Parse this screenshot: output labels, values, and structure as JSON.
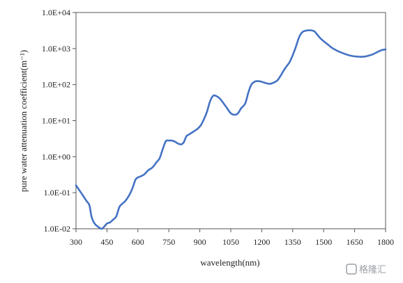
{
  "chart_data": {
    "type": "line",
    "title": "",
    "xlabel": "wavelength(nm)",
    "ylabel": "pure water attenuation coefficient(m⁻¹)",
    "xlim": [
      300,
      1800
    ],
    "ylim": [
      0.01,
      10000
    ],
    "yscale": "log",
    "x_ticks": [
      300,
      450,
      600,
      750,
      900,
      1050,
      1200,
      1350,
      1500,
      1650,
      1800
    ],
    "x_tick_labels": [
      "300",
      "450",
      "600",
      "750",
      "900",
      "1050",
      "1200",
      "1350",
      "1500",
      "1650",
      "1800"
    ],
    "y_ticks": [
      0.01,
      0.1,
      1,
      10,
      100,
      1000,
      10000
    ],
    "y_tick_labels": [
      "1.0E-02",
      "1.0E-01",
      "1.0E+00",
      "1.0E+01",
      "1.0E+02",
      "1.0E+03",
      "1.0E+04"
    ],
    "grid": false,
    "line_color": "#4472C4",
    "series": [
      {
        "x": [
          300,
          330,
          350,
          365,
          375,
          390,
          410,
          425,
          440,
          450,
          465,
          480,
          495,
          510,
          525,
          540,
          560,
          575,
          590,
          610,
          630,
          650,
          670,
          690,
          705,
          720,
          735,
          750,
          765,
          780,
          795,
          810,
          822,
          835,
          850,
          870,
          890,
          905,
          920,
          935,
          950,
          965,
          980,
          995,
          1010,
          1030,
          1050,
          1070,
          1085,
          1100,
          1120,
          1135,
          1150,
          1165,
          1180,
          1200,
          1220,
          1240,
          1260,
          1275,
          1290,
          1305,
          1320,
          1335,
          1350,
          1365,
          1380,
          1395,
          1410,
          1425,
          1440,
          1455,
          1470,
          1485,
          1500,
          1520,
          1540,
          1560,
          1580,
          1600,
          1620,
          1640,
          1660,
          1680,
          1700,
          1720,
          1740,
          1760,
          1780,
          1800
        ],
        "y": [
          0.16,
          0.09,
          0.06,
          0.045,
          0.022,
          0.014,
          0.011,
          0.01,
          0.012,
          0.014,
          0.015,
          0.018,
          0.022,
          0.04,
          0.05,
          0.06,
          0.09,
          0.14,
          0.24,
          0.28,
          0.32,
          0.42,
          0.5,
          0.7,
          0.9,
          1.6,
          2.7,
          2.8,
          2.8,
          2.6,
          2.3,
          2.2,
          2.5,
          3.7,
          4.2,
          5.0,
          6.0,
          7.5,
          11,
          18,
          35,
          49,
          48,
          42,
          33,
          23,
          16,
          14.5,
          16,
          22,
          30,
          60,
          100,
          120,
          125,
          120,
          110,
          105,
          115,
          130,
          170,
          240,
          320,
          420,
          650,
          1100,
          2000,
          2800,
          3100,
          3200,
          3200,
          3000,
          2400,
          1900,
          1600,
          1300,
          1050,
          900,
          800,
          720,
          660,
          620,
          600,
          590,
          600,
          640,
          700,
          800,
          900,
          950
        ]
      }
    ]
  },
  "watermark": {
    "text": "格隆汇"
  }
}
